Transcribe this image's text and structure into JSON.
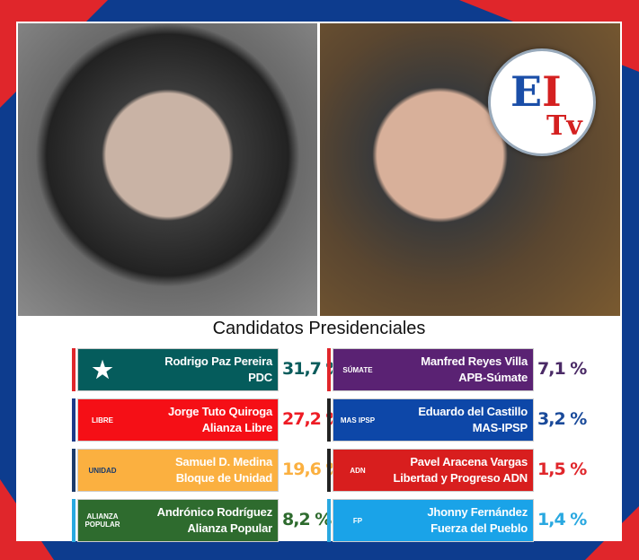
{
  "title": "Candidatos Presidenciales",
  "logo": {
    "text": "EITv"
  },
  "chart_data": {
    "type": "table",
    "title": "Candidatos Presidenciales",
    "rows": [
      {
        "candidate": "Rodrigo Paz Pereira",
        "party": "PDC",
        "percent": "31,7 %",
        "value": 31.7,
        "color": "#055c5c",
        "pct_color": "#0a5c5c",
        "accent": "#e0262b",
        "logo": "star-logo"
      },
      {
        "candidate": "Jorge Tuto Quiroga",
        "party": "Alianza Libre",
        "percent": "27,2 %",
        "value": 27.2,
        "color": "#f50f16",
        "pct_color": "#ee1c25",
        "accent": "#1a3a8a",
        "logo": "LIBRE"
      },
      {
        "candidate": "Samuel D. Medina",
        "party": "Bloque de Unidad",
        "percent": "19,6 %",
        "value": 19.6,
        "color": "#fbb040",
        "pct_color": "#fbb040",
        "accent": "#1a3a6a",
        "logo": "UNIDAD"
      },
      {
        "candidate": "Andrónico Rodríguez",
        "party": "Alianza Popular",
        "percent": "8,2 %",
        "value": 8.2,
        "color": "#2e6b2e",
        "pct_color": "#2e6b2e",
        "accent": "#29a8e0",
        "logo": "ALIANZA POPULAR"
      },
      {
        "candidate": "Manfred Reyes Villa",
        "party": "APB-Súmate",
        "percent": "7,1 %",
        "value": 7.1,
        "color": "#5a2273",
        "pct_color": "#4a2a66",
        "accent": "#e0262b",
        "logo": "SÚMATE"
      },
      {
        "candidate": "Eduardo del Castillo",
        "party": "MAS-IPSP",
        "percent": "3,2 %",
        "value": 3.2,
        "color": "#0d47a8",
        "pct_color": "#1a4a9a",
        "accent": "#222222",
        "logo": "MAS IPSP"
      },
      {
        "candidate": "Pavel Aracena Vargas",
        "party": "Libertad y Progreso ADN",
        "percent": "1,5 %",
        "value": 1.5,
        "color": "#d81e1e",
        "pct_color": "#e0262b",
        "accent": "#222222",
        "logo": "ADN"
      },
      {
        "candidate": "Jhonny Fernández",
        "party": "Fuerza del Pueblo",
        "percent": "1,4 %",
        "value": 1.4,
        "color": "#1aa3e8",
        "pct_color": "#29a8e0",
        "accent": "#29a8e0",
        "logo": "FP"
      }
    ]
  }
}
